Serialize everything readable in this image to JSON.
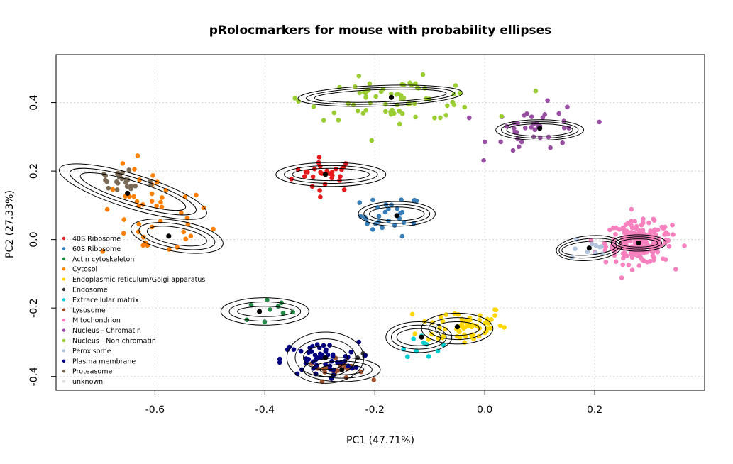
{
  "chart_data": {
    "type": "scatter",
    "title": "pRolocmarkers for mouse with probability ellipses",
    "xlabel": "PC1 (47.71%)",
    "ylabel": "PC2 (27.33%)",
    "xlim": [
      -0.78,
      0.4
    ],
    "ylim": [
      -0.44,
      0.54
    ],
    "xticks": [
      -0.6,
      -0.4,
      -0.2,
      0.0,
      0.2
    ],
    "xtick_labels": [
      "-0.6",
      "-0.4",
      "-0.2",
      "0.0",
      "0.2"
    ],
    "yticks": [
      -0.4,
      -0.2,
      0.0,
      0.2,
      0.4
    ],
    "ytick_labels": [
      "-0.4",
      "-0.2",
      "0.0",
      "0.2",
      "0.4"
    ],
    "grid": true,
    "legend_position": "left",
    "legend": [
      {
        "name": "40S Ribosome",
        "color": "#E41A1C"
      },
      {
        "name": "60S Ribosome",
        "color": "#377EB8"
      },
      {
        "name": "Actin cytoskeleton",
        "color": "#238B45"
      },
      {
        "name": "Cytosol",
        "color": "#FF7F00"
      },
      {
        "name": "Endoplasmic reticulum/Golgi apparatus",
        "color": "#FFD700"
      },
      {
        "name": "Endosome",
        "color": "#333333"
      },
      {
        "name": "Extracellular matrix",
        "color": "#00CED1"
      },
      {
        "name": "Lysosome",
        "color": "#A0522D"
      },
      {
        "name": "Mitochondrion",
        "color": "#F781BF"
      },
      {
        "name": "Nucleus - Chromatin",
        "color": "#984EA3"
      },
      {
        "name": "Nucleus - Non-chromatin",
        "color": "#9ACD32"
      },
      {
        "name": "Peroxisome",
        "color": "#B0C4DE"
      },
      {
        "name": "Plasma membrane",
        "color": "#000080"
      },
      {
        "name": "Proteasome",
        "color": "#7A6A55"
      },
      {
        "name": "unknown",
        "color": "#E0E0E0"
      }
    ],
    "series": [
      {
        "name": "40S Ribosome",
        "color": "#E41A1C",
        "center": [
          -0.29,
          0.19
        ],
        "spread": [
          0.03,
          0.025
        ],
        "n": 28
      },
      {
        "name": "60S Ribosome",
        "color": "#377EB8",
        "center": [
          -0.17,
          0.07
        ],
        "spread": [
          0.028,
          0.03
        ],
        "n": 30
      },
      {
        "name": "Actin cytoskeleton",
        "color": "#238B45",
        "center": [
          -0.4,
          -0.21
        ],
        "spread": [
          0.035,
          0.02
        ],
        "n": 9
      },
      {
        "name": "Cytosol",
        "color": "#FF7F00",
        "center": [
          -0.6,
          0.07
        ],
        "spread": [
          0.05,
          0.07
        ],
        "n": 45
      },
      {
        "name": "Endoplasmic reticulum/Golgi apparatus",
        "color": "#FFD700",
        "center": [
          -0.04,
          -0.25
        ],
        "spread": [
          0.04,
          0.03
        ],
        "n": 60
      },
      {
        "name": "Endosome",
        "color": "#333333",
        "center": [
          -0.22,
          -0.35
        ],
        "spread": [
          0.02,
          0.02
        ],
        "n": 5
      },
      {
        "name": "Extracellular matrix",
        "color": "#00CED1",
        "center": [
          -0.12,
          -0.3
        ],
        "spread": [
          0.02,
          0.02
        ],
        "n": 10
      },
      {
        "name": "Lysosome",
        "color": "#A0522D",
        "center": [
          -0.27,
          -0.38
        ],
        "spread": [
          0.025,
          0.015
        ],
        "n": 25
      },
      {
        "name": "Mitochondrion",
        "color": "#F781BF",
        "center": [
          0.28,
          -0.01
        ],
        "spread": [
          0.03,
          0.03
        ],
        "n": 220
      },
      {
        "name": "Nucleus - Chromatin",
        "color": "#984EA3",
        "center": [
          0.1,
          0.32
        ],
        "spread": [
          0.045,
          0.035
        ],
        "n": 40
      },
      {
        "name": "Nucleus - Non-chromatin",
        "color": "#9ACD32",
        "center": [
          -0.16,
          0.41
        ],
        "spread": [
          0.08,
          0.03
        ],
        "n": 70
      },
      {
        "name": "Peroxisome",
        "color": "#B0C4DE",
        "center": [
          0.18,
          -0.03
        ],
        "spread": [
          0.025,
          0.02
        ],
        "n": 10
      },
      {
        "name": "Plasma membrane",
        "color": "#000080",
        "center": [
          -0.3,
          -0.35
        ],
        "spread": [
          0.035,
          0.025
        ],
        "n": 55
      },
      {
        "name": "Proteasome",
        "color": "#7A6A55",
        "center": [
          -0.66,
          0.17
        ],
        "spread": [
          0.03,
          0.025
        ],
        "n": 25
      }
    ],
    "centroids": [
      {
        "name": "Nucleus - Non-chromatin",
        "x": -0.17,
        "y": 0.415
      },
      {
        "name": "Nucleus - Chromatin",
        "x": 0.1,
        "y": 0.325
      },
      {
        "name": "40S Ribosome",
        "x": -0.29,
        "y": 0.19
      },
      {
        "name": "60S Ribosome",
        "x": -0.16,
        "y": 0.07
      },
      {
        "name": "Proteasome",
        "x": -0.65,
        "y": 0.135
      },
      {
        "name": "Cytosol",
        "x": -0.575,
        "y": 0.01
      },
      {
        "name": "Mitochondrion",
        "x": 0.28,
        "y": -0.01
      },
      {
        "name": "Peroxisome",
        "x": 0.19,
        "y": -0.025
      },
      {
        "name": "Actin cytoskeleton",
        "x": -0.41,
        "y": -0.21
      },
      {
        "name": "Endoplasmic reticulum/Golgi apparatus",
        "x": -0.05,
        "y": -0.255
      },
      {
        "name": "Extracellular matrix",
        "x": -0.115,
        "y": -0.285
      },
      {
        "name": "Plasma membrane",
        "x": -0.29,
        "y": -0.345
      },
      {
        "name": "Lysosome",
        "x": -0.26,
        "y": -0.38
      }
    ],
    "ellipses": [
      {
        "cx": -0.19,
        "cy": 0.42,
        "rx": [
          0.12,
          0.135,
          0.15
        ],
        "ry": [
          0.018,
          0.024,
          0.03
        ],
        "angle": -2
      },
      {
        "cx": 0.1,
        "cy": 0.32,
        "rx": [
          0.06,
          0.07,
          0.08
        ],
        "ry": [
          0.018,
          0.024,
          0.03
        ],
        "angle": 0
      },
      {
        "cx": -0.28,
        "cy": 0.19,
        "rx": [
          0.07,
          0.085,
          0.1
        ],
        "ry": [
          0.018,
          0.026,
          0.035
        ],
        "angle": 0
      },
      {
        "cx": -0.16,
        "cy": 0.075,
        "rx": [
          0.05,
          0.06,
          0.07
        ],
        "ry": [
          0.02,
          0.028,
          0.036
        ],
        "angle": 0
      },
      {
        "cx": -0.64,
        "cy": 0.14,
        "rx": [
          0.1,
          0.12,
          0.14
        ],
        "ry": [
          0.03,
          0.04,
          0.05
        ],
        "angle": 17
      },
      {
        "cx": -0.56,
        "cy": 0.01,
        "rx": [
          0.055,
          0.07,
          0.085
        ],
        "ry": [
          0.025,
          0.035,
          0.045
        ],
        "angle": 10
      },
      {
        "cx": 0.28,
        "cy": -0.01,
        "rx": [
          0.035,
          0.042,
          0.05
        ],
        "ry": [
          0.012,
          0.018,
          0.024
        ],
        "angle": 0
      },
      {
        "cx": 0.19,
        "cy": -0.025,
        "rx": [
          0.05,
          0.055,
          0.06
        ],
        "ry": [
          0.02,
          0.028,
          0.036
        ],
        "angle": -5
      },
      {
        "cx": -0.4,
        "cy": -0.21,
        "rx": [
          0.05,
          0.065,
          0.08
        ],
        "ry": [
          0.015,
          0.028,
          0.04
        ],
        "angle": 0
      },
      {
        "cx": -0.05,
        "cy": -0.26,
        "rx": [
          0.04,
          0.052,
          0.065
        ],
        "ry": [
          0.02,
          0.032,
          0.045
        ],
        "angle": 0
      },
      {
        "cx": -0.12,
        "cy": -0.285,
        "rx": [
          0.04,
          0.05,
          0.06
        ],
        "ry": [
          0.025,
          0.035,
          0.045
        ],
        "angle": 0
      },
      {
        "cx": -0.29,
        "cy": -0.345,
        "rx": [
          0.04,
          0.055,
          0.07
        ],
        "ry": [
          0.035,
          0.055,
          0.075
        ],
        "angle": 0
      },
      {
        "cx": -0.26,
        "cy": -0.38,
        "rx": [
          0.04,
          0.055,
          0.07
        ],
        "ry": [
          0.015,
          0.025,
          0.035
        ],
        "angle": 0
      }
    ]
  }
}
